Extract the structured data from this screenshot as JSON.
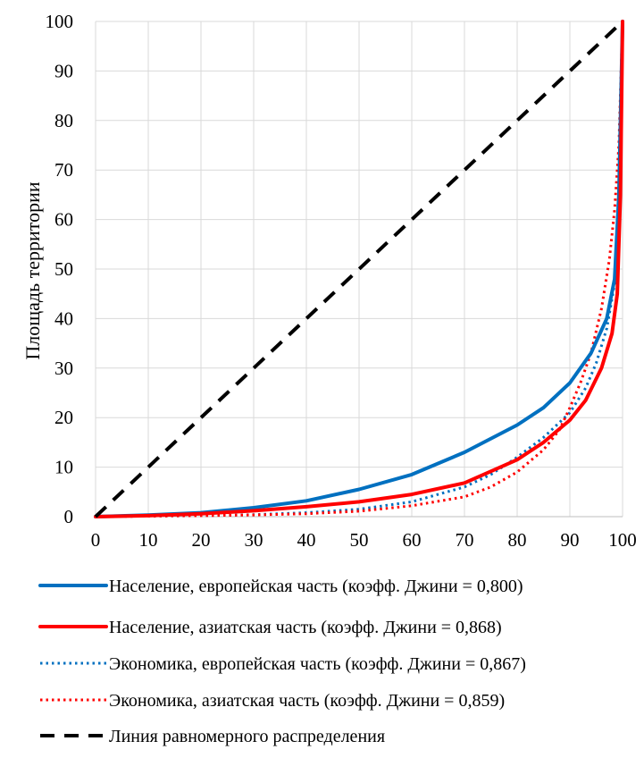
{
  "chart_data": {
    "type": "line",
    "title": "",
    "xlabel": "",
    "ylabel": "Площадь территории",
    "xlim": [
      0,
      100
    ],
    "ylim": [
      0,
      100
    ],
    "x_ticks": [
      "0",
      "10",
      "20",
      "30",
      "40",
      "50",
      "60",
      "70",
      "80",
      "90",
      "100"
    ],
    "y_ticks": [
      "0",
      "10",
      "20",
      "30",
      "40",
      "50",
      "60",
      "70",
      "80",
      "90",
      "100"
    ],
    "grid": true,
    "legend_position": "bottom",
    "series": [
      {
        "name": "Население, европейская часть (коэфф. Джини = 0,800)",
        "color": "#0070c0",
        "style": "solid",
        "x": [
          0,
          10,
          20,
          30,
          40,
          50,
          60,
          70,
          80,
          85,
          90,
          94,
          97,
          98.5,
          99.3,
          100
        ],
        "y": [
          0,
          0.3,
          0.8,
          1.8,
          3.2,
          5.5,
          8.5,
          13,
          18.5,
          22,
          27,
          33,
          40,
          48,
          65,
          100
        ]
      },
      {
        "name": "Население, азиатская часть (коэфф. Джини = 0,868)",
        "color": "#ff0000",
        "style": "solid",
        "x": [
          0,
          10,
          20,
          30,
          40,
          50,
          60,
          70,
          80,
          85,
          90,
          93,
          96,
          98,
          99,
          99.6,
          100
        ],
        "y": [
          0,
          0.2,
          0.6,
          1.2,
          2,
          3,
          4.5,
          6.8,
          11.5,
          15,
          19.5,
          23.5,
          30,
          37,
          45,
          65,
          100
        ]
      },
      {
        "name": "Экономика, европейская часть (коэфф. Джини = 0,867)",
        "color": "#0070c0",
        "style": "dotted",
        "x": [
          0,
          10,
          20,
          30,
          40,
          50,
          60,
          70,
          75,
          80,
          85,
          90,
          93,
          95,
          97,
          98.5,
          99.5,
          100
        ],
        "y": [
          0,
          0.1,
          0.2,
          0.4,
          0.8,
          1.5,
          3,
          6,
          8.5,
          12,
          16,
          21,
          26,
          31,
          38,
          47,
          62,
          100
        ]
      },
      {
        "name": "Экономика, азиатская часть (коэфф. Джини = 0,859)",
        "color": "#ff0000",
        "style": "dotted",
        "x": [
          0,
          10,
          20,
          30,
          40,
          50,
          60,
          70,
          75,
          80,
          85,
          88,
          90,
          92,
          94,
          96,
          97.5,
          98.5,
          99.3,
          100
        ],
        "y": [
          0,
          0.1,
          0.2,
          0.35,
          0.6,
          1.1,
          2.2,
          4,
          6,
          9,
          13.5,
          17.5,
          22,
          27,
          33,
          42,
          52,
          62,
          75,
          100
        ]
      },
      {
        "name": "Линия равномерного распределения",
        "color": "#000000",
        "style": "dashed",
        "x": [
          0,
          100
        ],
        "y": [
          0,
          100
        ]
      }
    ]
  }
}
